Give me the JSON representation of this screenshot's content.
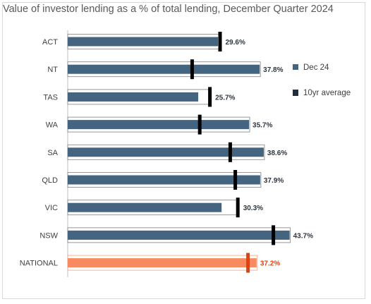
{
  "chart_data": {
    "type": "bar",
    "title": "Value of investor lending as a % of total lending, December Quarter 2024",
    "categories": [
      "ACT",
      "NT",
      "TAS",
      "WA",
      "SA",
      "QLD",
      "VIC",
      "NSW",
      "NATIONAL"
    ],
    "series": [
      {
        "name": "Dec 24",
        "values": [
          29.6,
          37.8,
          25.7,
          35.7,
          38.6,
          37.9,
          30.3,
          43.7,
          37.2
        ],
        "labels": [
          "29.6%",
          "37.8%",
          "25.7%",
          "35.7%",
          "38.6%",
          "37.9%",
          "30.3%",
          "43.7%",
          "37.2%"
        ],
        "color": "#44647f",
        "highlight_color": "#f88a5f",
        "highlight_category": "NATIONAL"
      },
      {
        "name": "10yr average",
        "values": [
          30.0,
          24.5,
          28.0,
          26.0,
          32.0,
          33.0,
          33.5,
          40.5,
          35.5
        ],
        "color": "#000000",
        "highlight_color": "#e0420f"
      }
    ],
    "xlim": [
      0,
      50
    ],
    "grid": false,
    "legend": "right",
    "value_label_highlight_color": "#e0420f"
  }
}
